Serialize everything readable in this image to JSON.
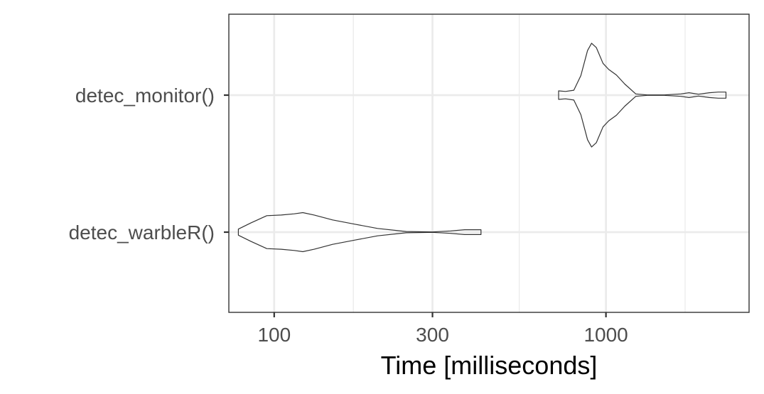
{
  "chart_data": {
    "type": "violin",
    "xlabel": "Time [milliseconds]",
    "ylabel": "",
    "x_scale": "log10",
    "xlim": [
      73,
      2700
    ],
    "x_ticks": [
      100,
      300,
      1000
    ],
    "x_tick_labels": [
      "100",
      "300",
      "1000"
    ],
    "x_minor_gridlines": [
      173.2,
      547.7,
      1732
    ],
    "grid": true,
    "colors": {
      "outline": "#333333",
      "grid": "#ebebeb",
      "panel_border": "#333333"
    },
    "categories": [
      "detec_monitor()",
      "detec_warbleR()"
    ],
    "series": [
      {
        "name": "detec_monitor()",
        "density": [
          {
            "x": 720,
            "w": 0.07
          },
          {
            "x": 755,
            "w": 0.06
          },
          {
            "x": 800,
            "w": 0.08
          },
          {
            "x": 840,
            "w": 0.32
          },
          {
            "x": 880,
            "w": 0.73
          },
          {
            "x": 905,
            "w": 0.85
          },
          {
            "x": 935,
            "w": 0.78
          },
          {
            "x": 980,
            "w": 0.52
          },
          {
            "x": 1020,
            "w": 0.42
          },
          {
            "x": 1075,
            "w": 0.33
          },
          {
            "x": 1140,
            "w": 0.18
          },
          {
            "x": 1230,
            "w": 0.02
          },
          {
            "x": 1330,
            "w": 0.003
          },
          {
            "x": 1500,
            "w": 0.003
          },
          {
            "x": 1680,
            "w": 0.02
          },
          {
            "x": 1780,
            "w": 0.04
          },
          {
            "x": 1900,
            "w": 0.015
          },
          {
            "x": 2050,
            "w": 0.04
          },
          {
            "x": 2180,
            "w": 0.05
          },
          {
            "x": 2300,
            "w": 0.05
          }
        ]
      },
      {
        "name": "detec_warbleR()",
        "density": [
          {
            "x": 78,
            "w": 0.05
          },
          {
            "x": 85,
            "w": 0.15
          },
          {
            "x": 95,
            "w": 0.27
          },
          {
            "x": 105,
            "w": 0.28
          },
          {
            "x": 115,
            "w": 0.3
          },
          {
            "x": 122,
            "w": 0.32
          },
          {
            "x": 132,
            "w": 0.28
          },
          {
            "x": 150,
            "w": 0.2
          },
          {
            "x": 175,
            "w": 0.13
          },
          {
            "x": 205,
            "w": 0.06
          },
          {
            "x": 250,
            "w": 0.01
          },
          {
            "x": 300,
            "w": 0.003
          },
          {
            "x": 340,
            "w": 0.02
          },
          {
            "x": 375,
            "w": 0.04
          },
          {
            "x": 420,
            "w": 0.04
          }
        ]
      }
    ]
  }
}
